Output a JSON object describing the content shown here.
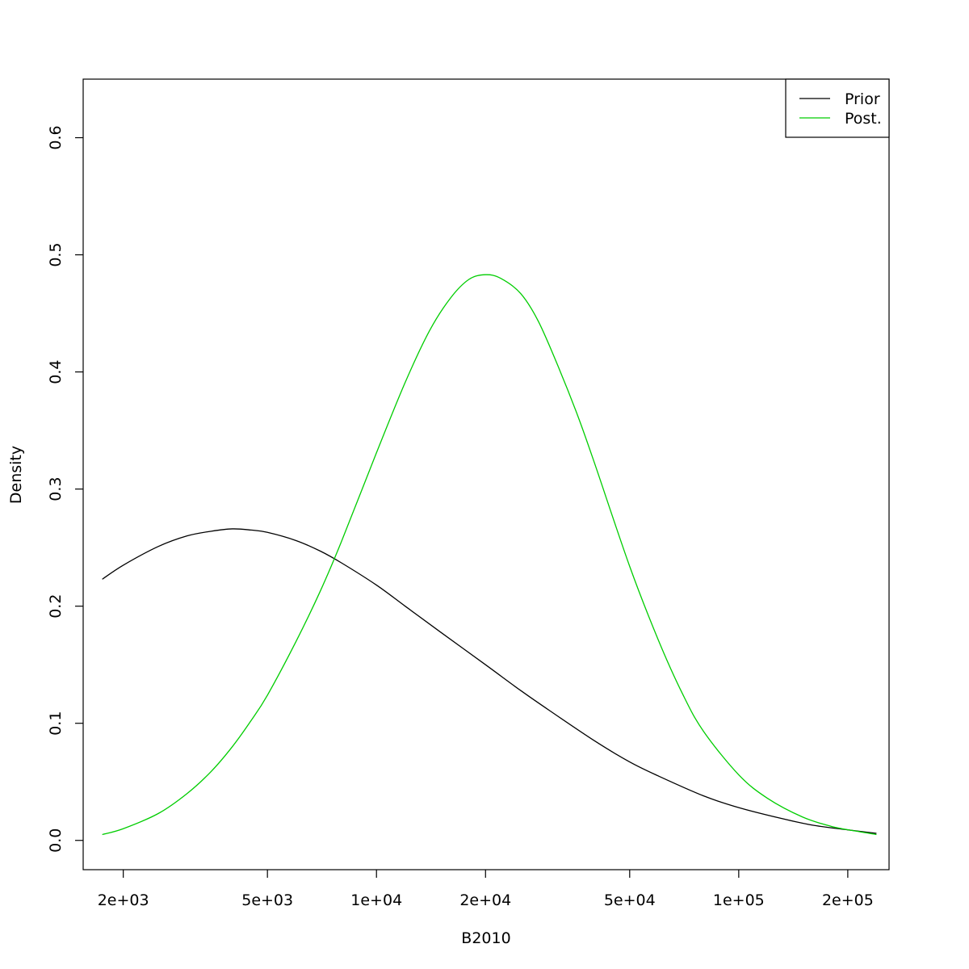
{
  "chart_data": {
    "type": "line",
    "title": "",
    "xlabel": "B2010",
    "ylabel": "Density",
    "x_scale": "log",
    "xlim": [
      1550,
      260000
    ],
    "ylim": [
      -0.025,
      0.65
    ],
    "x_ticks": [
      {
        "value": 2000,
        "label": "2e+03"
      },
      {
        "value": 5000,
        "label": "5e+03"
      },
      {
        "value": 10000,
        "label": "1e+04"
      },
      {
        "value": 20000,
        "label": "2e+04"
      },
      {
        "value": 50000,
        "label": "5e+04"
      },
      {
        "value": 100000,
        "label": "1e+05"
      },
      {
        "value": 200000,
        "label": "2e+05"
      }
    ],
    "y_ticks": [
      {
        "value": 0.0,
        "label": "0.0"
      },
      {
        "value": 0.1,
        "label": "0.1"
      },
      {
        "value": 0.2,
        "label": "0.2"
      },
      {
        "value": 0.3,
        "label": "0.3"
      },
      {
        "value": 0.4,
        "label": "0.4"
      },
      {
        "value": 0.5,
        "label": "0.5"
      },
      {
        "value": 0.6,
        "label": "0.6"
      }
    ],
    "grid": false,
    "legend": {
      "placement": "top-right"
    },
    "series": [
      {
        "name": "Prior",
        "color": "#000000",
        "x": [
          1750,
          2000,
          2500,
          3000,
          3500,
          4000,
          4500,
          5000,
          6000,
          7000,
          8000,
          10000,
          12000,
          15000,
          20000,
          25000,
          30000,
          40000,
          50000,
          60000,
          80000,
          100000,
          130000,
          160000,
          200000,
          240000
        ],
        "y": [
          0.223,
          0.235,
          0.251,
          0.26,
          0.264,
          0.266,
          0.265,
          0.263,
          0.256,
          0.247,
          0.237,
          0.218,
          0.2,
          0.178,
          0.15,
          0.128,
          0.111,
          0.085,
          0.067,
          0.055,
          0.038,
          0.028,
          0.019,
          0.013,
          0.009,
          0.006
        ]
      },
      {
        "name": "Post.",
        "color": "#00cd00",
        "x": [
          1750,
          2000,
          2500,
          3000,
          3500,
          4000,
          4500,
          5000,
          6000,
          7000,
          8000,
          10000,
          12000,
          14000,
          16000,
          18000,
          20000,
          22000,
          25000,
          28000,
          32000,
          36000,
          40000,
          50000,
          60000,
          70000,
          80000,
          100000,
          120000,
          150000,
          180000,
          210000,
          240000
        ],
        "y": [
          0.005,
          0.01,
          0.023,
          0.04,
          0.059,
          0.08,
          0.102,
          0.124,
          0.17,
          0.213,
          0.255,
          0.331,
          0.391,
          0.435,
          0.463,
          0.479,
          0.483,
          0.48,
          0.467,
          0.443,
          0.402,
          0.362,
          0.322,
          0.234,
          0.171,
          0.125,
          0.093,
          0.056,
          0.036,
          0.02,
          0.012,
          0.008,
          0.005
        ]
      }
    ]
  }
}
